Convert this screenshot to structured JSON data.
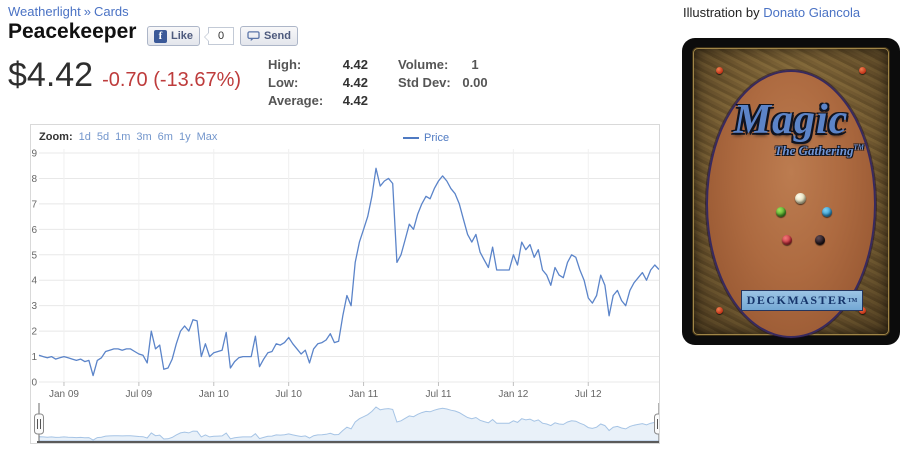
{
  "page": {
    "breadcrumb": {
      "set": "Weatherlight",
      "separator": "»",
      "section": "Cards"
    },
    "title": "Peacekeeper",
    "social": {
      "like_label": "Like",
      "like_count": "0",
      "send_label": "Send",
      "fb_glyph": "f"
    },
    "price": {
      "current": "$4.42",
      "change": "-0.70 (-13.67%)"
    },
    "stats": {
      "high_label": "High:",
      "high_value": "4.42",
      "low_label": "Low:",
      "low_value": "4.42",
      "average_label": "Average:",
      "average_value": "4.42",
      "volume_label": "Volume:",
      "volume_value": "1",
      "stddev_label": "Std Dev:",
      "stddev_value": "0.00"
    },
    "illustration": {
      "prefix": "Illustration by",
      "artist": "Donato Giancola"
    },
    "card_back": {
      "brand": "Magic",
      "sub_brand": "The Gathering",
      "tm": "TM",
      "footer": "DECKMASTER"
    }
  },
  "chart_data": {
    "type": "line",
    "title": "",
    "zoom_label": "Zoom:",
    "zoom_options": [
      "1d",
      "5d",
      "1m",
      "3m",
      "6m",
      "1y",
      "Max"
    ],
    "legend": "Price",
    "legend_position": "top-center",
    "grid": true,
    "ylim": [
      0,
      9
    ],
    "y_ticks": [
      0,
      1,
      2,
      3,
      4,
      5,
      6,
      7,
      8,
      9
    ],
    "x_tick_labels": [
      "Jan 09",
      "Jul 09",
      "Jan 10",
      "Jul 10",
      "Jan 11",
      "Jul 11",
      "Jan 12",
      "Jul 12"
    ],
    "x_tick_indices": [
      6,
      24,
      42,
      60,
      78,
      96,
      114,
      132
    ],
    "series": [
      {
        "name": "Price",
        "color": "#5b84c9",
        "values": [
          1.05,
          1.0,
          0.95,
          1.0,
          0.9,
          0.95,
          1.0,
          0.95,
          0.9,
          0.85,
          0.9,
          0.8,
          0.85,
          0.25,
          0.85,
          0.95,
          1.2,
          1.25,
          1.3,
          1.3,
          1.25,
          1.3,
          1.3,
          1.2,
          1.1,
          1.05,
          0.75,
          2.0,
          1.3,
          1.45,
          0.5,
          0.55,
          0.9,
          1.5,
          2.0,
          2.2,
          2.0,
          2.45,
          2.4,
          1.0,
          1.5,
          1.0,
          1.15,
          1.2,
          1.25,
          1.95,
          0.55,
          0.8,
          0.95,
          1.0,
          1.0,
          1.0,
          1.8,
          0.6,
          0.9,
          1.15,
          1.2,
          1.5,
          1.45,
          1.55,
          1.75,
          1.5,
          1.3,
          1.1,
          1.25,
          0.75,
          1.3,
          1.5,
          1.55,
          1.65,
          1.9,
          1.55,
          1.6,
          2.6,
          3.4,
          3.0,
          4.7,
          5.5,
          6.0,
          6.5,
          7.3,
          8.4,
          7.7,
          7.9,
          8.0,
          7.8,
          4.7,
          5.0,
          5.6,
          6.2,
          6.0,
          6.6,
          7.0,
          7.3,
          7.2,
          7.6,
          7.9,
          8.1,
          7.9,
          7.6,
          7.4,
          7.0,
          6.4,
          5.8,
          5.5,
          5.8,
          5.1,
          4.8,
          4.5,
          5.3,
          4.4,
          4.4,
          4.4,
          4.4,
          5.0,
          4.6,
          5.5,
          5.2,
          5.4,
          4.9,
          5.2,
          4.4,
          4.2,
          3.8,
          4.5,
          4.2,
          4.1,
          4.7,
          5.0,
          4.9,
          4.4,
          4.0,
          3.3,
          3.1,
          3.4,
          4.2,
          3.8,
          2.6,
          3.4,
          3.6,
          3.2,
          3.0,
          3.6,
          3.9,
          4.1,
          4.3,
          4.0,
          4.4,
          4.6,
          4.42
        ]
      }
    ],
    "navigator": {
      "fill": "#e9f1f9",
      "line": "#a6c4e5"
    }
  }
}
